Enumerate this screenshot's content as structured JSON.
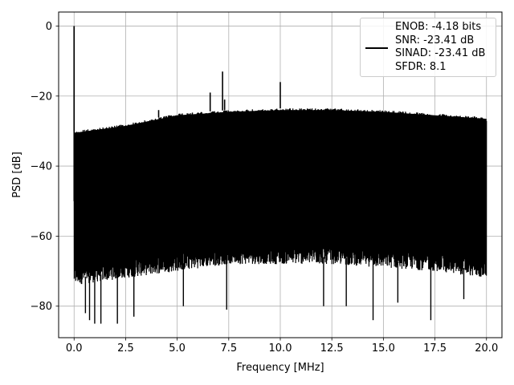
{
  "chart_data": {
    "type": "line",
    "title": "",
    "xlabel": "Frequency [MHz]",
    "ylabel": "PSD [dB]",
    "xlim": [
      -0.75,
      20.75
    ],
    "ylim": [
      -89,
      4
    ],
    "xticks": [
      0.0,
      2.5,
      5.0,
      7.5,
      10.0,
      12.5,
      15.0,
      17.5,
      20.0
    ],
    "xtick_labels": [
      "0.0",
      "2.5",
      "5.0",
      "7.5",
      "10.0",
      "12.5",
      "15.0",
      "17.5",
      "20.0"
    ],
    "yticks": [
      0,
      -20,
      -40,
      -60,
      -80
    ],
    "ytick_labels": [
      "0",
      "−20",
      "−40",
      "−60",
      "−80"
    ],
    "grid": true,
    "legend_position": "top-right",
    "series": [
      {
        "legend_lines": [
          "ENOB: -4.18 bits",
          "SNR: -23.41 dB",
          "SINAD: -23.41 dB",
          "SFDR: 8.1"
        ],
        "color": "#000000",
        "noise_floor_top": [
          {
            "x": 0.0,
            "y": -30
          },
          {
            "x": 2.5,
            "y": -28
          },
          {
            "x": 5.0,
            "y": -25
          },
          {
            "x": 7.5,
            "y": -24
          },
          {
            "x": 10.0,
            "y": -23.5
          },
          {
            "x": 12.5,
            "y": -23.5
          },
          {
            "x": 15.0,
            "y": -24
          },
          {
            "x": 17.5,
            "y": -25
          },
          {
            "x": 20.0,
            "y": -26
          }
        ],
        "noise_floor_bottom": [
          {
            "x": 0.0,
            "y": -72
          },
          {
            "x": 2.5,
            "y": -70
          },
          {
            "x": 5.0,
            "y": -68
          },
          {
            "x": 7.5,
            "y": -66
          },
          {
            "x": 10.0,
            "y": -66
          },
          {
            "x": 12.5,
            "y": -66
          },
          {
            "x": 15.0,
            "y": -67
          },
          {
            "x": 17.5,
            "y": -68
          },
          {
            "x": 20.0,
            "y": -70
          }
        ],
        "peaks": [
          {
            "x": 0.0,
            "y": 0
          },
          {
            "x": 7.2,
            "y": -13
          },
          {
            "x": 10.0,
            "y": -16
          },
          {
            "x": 6.6,
            "y": -19
          },
          {
            "x": 7.3,
            "y": -21
          },
          {
            "x": 4.1,
            "y": -24
          }
        ],
        "dips": [
          {
            "x": 0.55,
            "y": -82
          },
          {
            "x": 0.75,
            "y": -84
          },
          {
            "x": 1.0,
            "y": -85
          },
          {
            "x": 1.3,
            "y": -85
          },
          {
            "x": 2.1,
            "y": -85
          },
          {
            "x": 2.9,
            "y": -83
          },
          {
            "x": 5.3,
            "y": -80
          },
          {
            "x": 7.4,
            "y": -81
          },
          {
            "x": 12.1,
            "y": -80
          },
          {
            "x": 13.2,
            "y": -80
          },
          {
            "x": 14.5,
            "y": -84
          },
          {
            "x": 15.7,
            "y": -79
          },
          {
            "x": 17.3,
            "y": -84
          },
          {
            "x": 18.9,
            "y": -78
          }
        ]
      }
    ]
  }
}
